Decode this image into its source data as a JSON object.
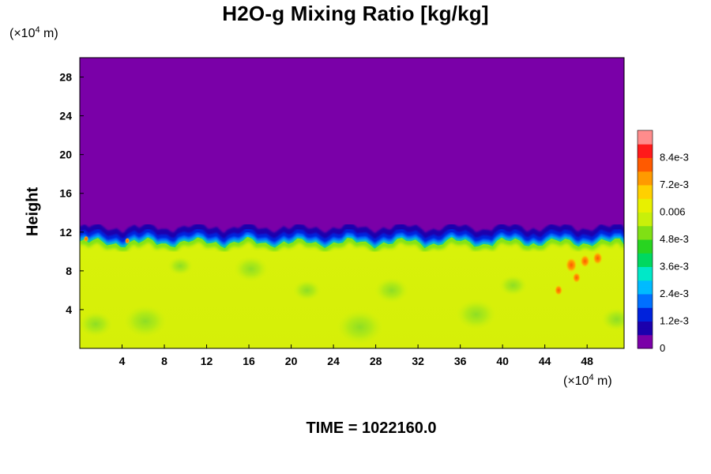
{
  "chart_data": {
    "type": "heatmap",
    "title": "H2O-g Mixing Ratio [kg/kg]",
    "ylabel": "Height",
    "y_unit_prefix": "(×10",
    "y_unit_exp": "4",
    "y_unit_suffix": " m)",
    "x_unit_prefix": "(×10",
    "x_unit_exp": "4",
    "x_unit_suffix": " m)",
    "xlim": [
      0,
      51.5
    ],
    "ylim": [
      0,
      30
    ],
    "x_ticks": [
      "4",
      "8",
      "12",
      "16",
      "20",
      "24",
      "28",
      "32",
      "36",
      "40",
      "44",
      "48"
    ],
    "y_ticks": [
      "4",
      "8",
      "12",
      "16",
      "20",
      "24",
      "28"
    ],
    "field_summary": {
      "boundary_height": 11.8,
      "upper_value": 0,
      "lower_value": 0.0065,
      "boundary_value": 0.0012
    },
    "colorbar": {
      "min": 0,
      "max": 0.0096,
      "labels": [
        "8.4e-3",
        "7.2e-3",
        "0.006",
        "4.8e-3",
        "3.6e-3",
        "2.4e-3",
        "1.2e-3",
        "0"
      ],
      "label_values": [
        0.0084,
        0.0072,
        0.006,
        0.0048,
        0.0036,
        0.0024,
        0.0012,
        0
      ],
      "colors": [
        "#7a00a8",
        "#1b00ad",
        "#0022dc",
        "#0070ff",
        "#00bbff",
        "#00e8c8",
        "#00d860",
        "#28d420",
        "#80e014",
        "#c8f00a",
        "#e8f000",
        "#ffd000",
        "#ff9a00",
        "#ff5a00",
        "#ff1a1a",
        "#ff8c8c"
      ]
    },
    "time_label": "TIME = 1022160.0"
  }
}
